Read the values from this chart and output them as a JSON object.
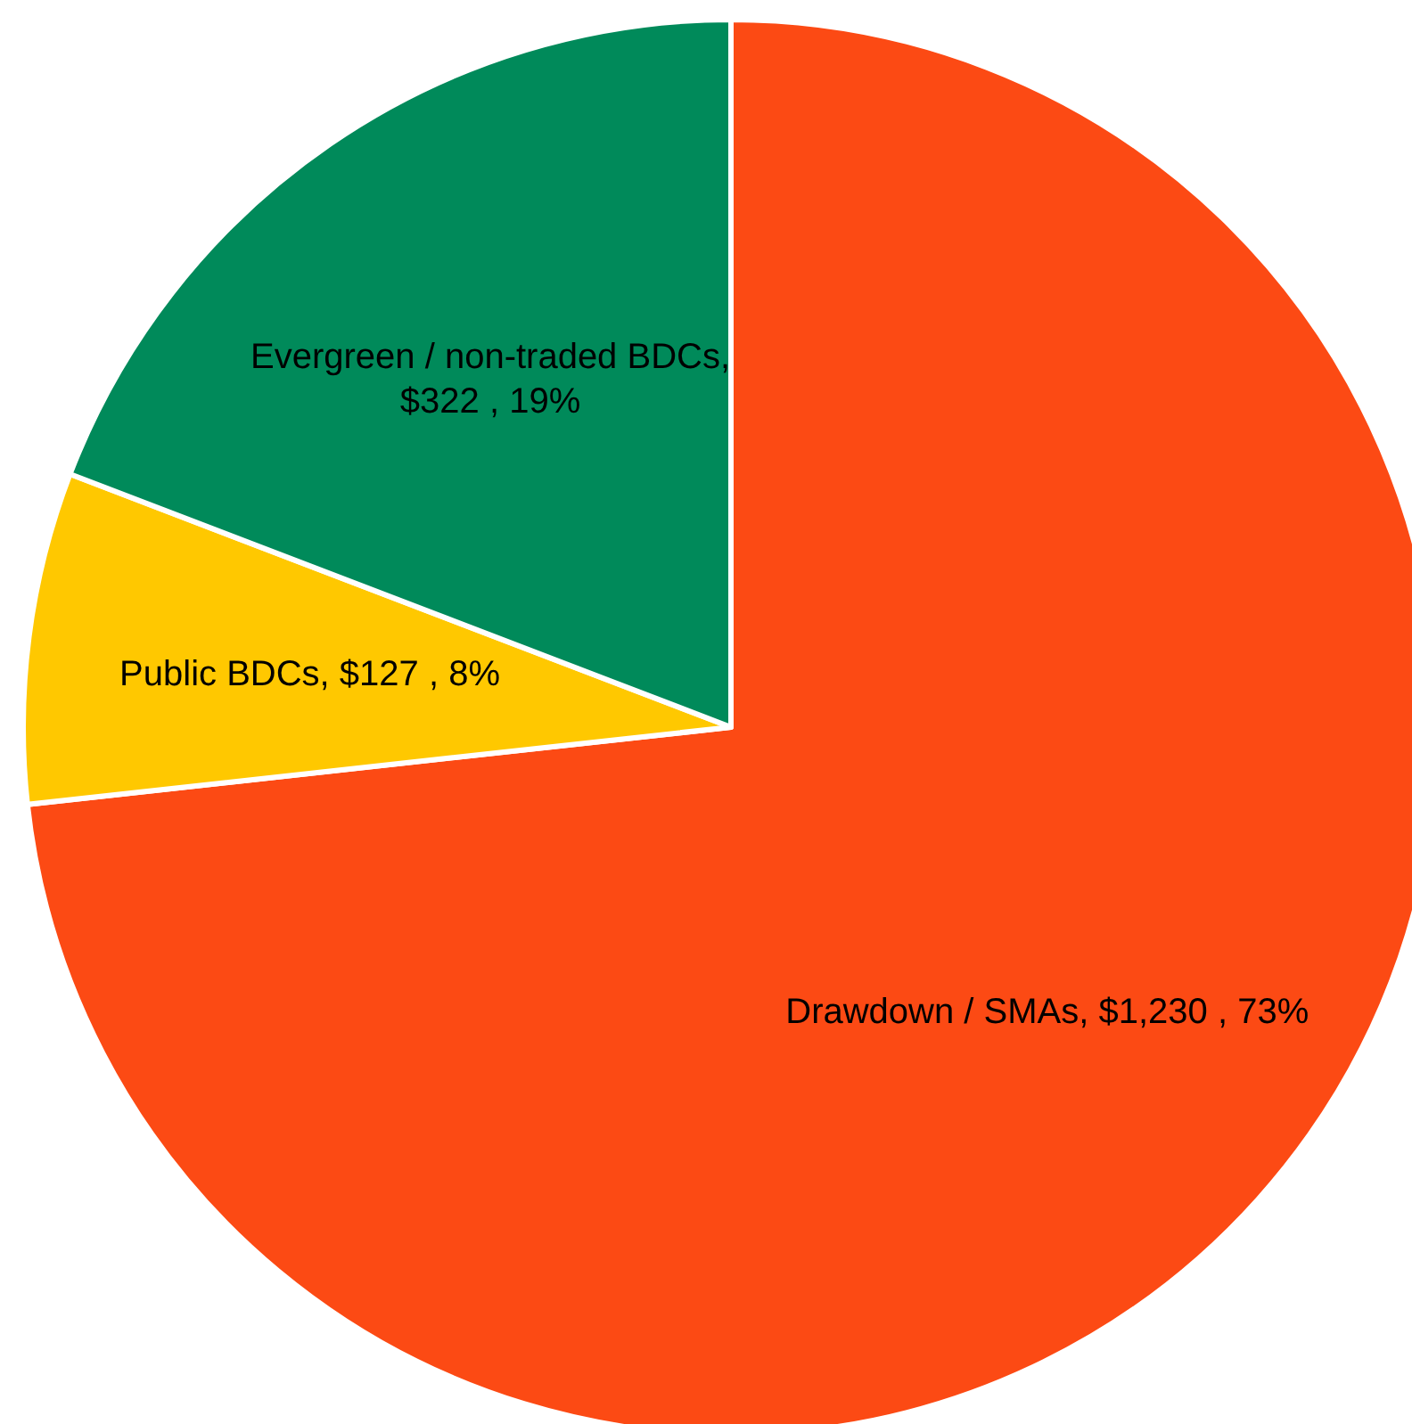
{
  "chart_data": {
    "type": "pie",
    "categories": [
      "Drawdown / SMAs",
      "Public BDCs",
      "Evergreen / non-traded BDCs"
    ],
    "values": [
      1230,
      127,
      322
    ],
    "colors": [
      "#fc4a14",
      "#ffc800",
      "#008a5a"
    ],
    "value_labels": [
      ",  $1,230 , 73%",
      ",  $127 , 8%",
      ",  $322 , 19%"
    ],
    "legend": false
  }
}
